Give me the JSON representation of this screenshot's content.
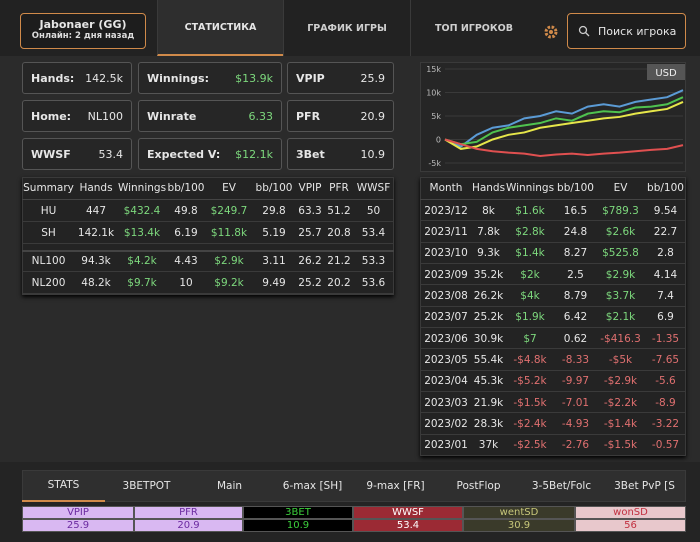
{
  "header": {
    "player": "Jabonaer (GG)",
    "status": "Онлайн: 2 дня назад",
    "tabs": [
      "СТАТИСТИКА",
      "ГРАФИК ИГРЫ",
      "ТОП ИГРОКОВ"
    ],
    "search": "Поиск игрока"
  },
  "cards": [
    {
      "label": "Hands:",
      "value": "142.5k"
    },
    {
      "label": "Winnings:",
      "value": "$13.9k"
    },
    {
      "label": "VPIP",
      "value": "25.9"
    },
    {
      "label": "Home:",
      "value": "NL100"
    },
    {
      "label": "Winrate",
      "value": "6.33"
    },
    {
      "label": "PFR",
      "value": "20.9"
    },
    {
      "label": "WWSF",
      "value": "53.4"
    },
    {
      "label": "Expected V:",
      "value": "$12.1k"
    },
    {
      "label": "3Bet",
      "value": "10.9"
    }
  ],
  "summary": {
    "columns": [
      "Summary",
      "Hands",
      "Winnings",
      "bb/100",
      "EV",
      "bb/100",
      "VPIP",
      "PFR",
      "WWSF"
    ],
    "rows": [
      [
        "HU",
        "447",
        "$432.4",
        "49.8",
        "$249.7",
        "29.8",
        "63.3",
        "51.2",
        "50"
      ],
      [
        "SH",
        "142.1k",
        "$13.4k",
        "6.19",
        "$11.8k",
        "5.19",
        "25.7",
        "20.8",
        "53.4"
      ],
      [
        "NL100",
        "94.3k",
        "$4.2k",
        "4.43",
        "$2.9k",
        "3.11",
        "26.2",
        "21.2",
        "53.3"
      ],
      [
        "NL200",
        "48.2k",
        "$9.7k",
        "10",
        "$9.2k",
        "9.49",
        "25.2",
        "20.2",
        "53.6"
      ]
    ]
  },
  "graph": {
    "currency": "USD",
    "ylim": [
      -5000,
      15000
    ],
    "yticks": [
      {
        "value": 15000,
        "label": "15k"
      },
      {
        "value": 10000,
        "label": "10k"
      },
      {
        "value": 5000,
        "label": "5k"
      },
      0,
      {
        "value": -5000,
        "label": "-5k"
      }
    ],
    "series": [
      {
        "color": "#5b9bd5",
        "values": [
          0,
          -1500,
          1000,
          2500,
          3000,
          4500,
          5000,
          6000,
          5500,
          7000,
          7500,
          7000,
          8000,
          8500,
          9000,
          10500
        ]
      },
      {
        "color": "#4fc24f",
        "values": [
          0,
          -1000,
          -500,
          1500,
          2500,
          3000,
          3500,
          4500,
          4000,
          5500,
          6000,
          5800,
          6800,
          7000,
          7500,
          9000
        ]
      },
      {
        "color": "#e6e64a",
        "values": [
          0,
          -2000,
          -1500,
          0,
          1000,
          1500,
          2500,
          3000,
          3500,
          4000,
          4500,
          4800,
          5500,
          6000,
          6500,
          8000
        ]
      },
      {
        "color": "#e05050",
        "values": [
          0,
          -1000,
          -2000,
          -2500,
          -2800,
          -3000,
          -3500,
          -3200,
          -3000,
          -3300,
          -3000,
          -2800,
          -2500,
          -2200,
          -2000,
          -1200
        ]
      }
    ]
  },
  "monthly": {
    "columns": [
      "Month",
      "Hands",
      "Winnings",
      "bb/100",
      "EV",
      "bb/100"
    ],
    "rows": [
      [
        "2023/12",
        "8k",
        "$1.6k",
        "16.5",
        "$789.3",
        "9.54"
      ],
      [
        "2023/11",
        "7.8k",
        "$2.8k",
        "24.8",
        "$2.6k",
        "22.7"
      ],
      [
        "2023/10",
        "9.3k",
        "$1.4k",
        "8.27",
        "$525.8",
        "2.8"
      ],
      [
        "2023/09",
        "35.2k",
        "$2k",
        "2.5",
        "$2.9k",
        "4.14"
      ],
      [
        "2023/08",
        "26.2k",
        "$4k",
        "8.79",
        "$3.7k",
        "7.4"
      ],
      [
        "2023/07",
        "25.2k",
        "$1.9k",
        "6.42",
        "$2.1k",
        "6.9"
      ],
      [
        "2023/06",
        "30.9k",
        "$7",
        "0.62",
        "-$416.3",
        "-1.35"
      ],
      [
        "2023/05",
        "55.4k",
        "-$4.8k",
        "-8.33",
        "-$5k",
        "-7.65"
      ],
      [
        "2023/04",
        "45.3k",
        "-$5.2k",
        "-9.97",
        "-$2.9k",
        "-5.6"
      ],
      [
        "2023/03",
        "21.9k",
        "-$1.5k",
        "-7.01",
        "-$2.2k",
        "-8.9"
      ],
      [
        "2023/02",
        "28.3k",
        "-$2.4k",
        "-4.93",
        "-$1.4k",
        "-3.22"
      ],
      [
        "2023/01",
        "37k",
        "-$2.5k",
        "-2.76",
        "-$1.5k",
        "-0.57"
      ]
    ]
  },
  "bottom": {
    "tabs": [
      "STATS",
      "3BETPOT",
      "Main",
      "6-max [SH]",
      "9-max [FR]",
      "PostFlop",
      "3-5Bet/Folc",
      "3Bet PvP [S"
    ],
    "stats": [
      {
        "label": "VPIP",
        "value": "25.9"
      },
      {
        "label": "PFR",
        "value": "20.9"
      },
      {
        "label": "3BET",
        "value": "10.9"
      },
      {
        "label": "WWSF",
        "value": "53.4"
      },
      {
        "label": "wentSD",
        "value": "30.9"
      },
      {
        "label": "wonSD",
        "value": "56"
      }
    ]
  }
}
